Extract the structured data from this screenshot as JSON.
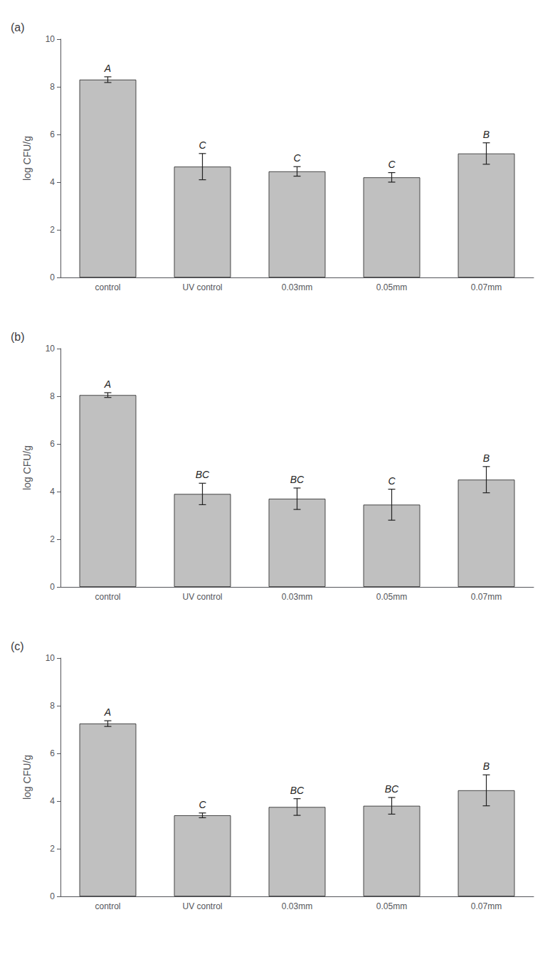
{
  "chart_data": [
    {
      "type": "bar",
      "title": "(a)",
      "categories": [
        "control",
        "UV control",
        "0.03mm",
        "0.05mm",
        "0.07mm"
      ],
      "values": [
        8.3,
        4.65,
        4.45,
        4.2,
        5.2
      ],
      "errors": [
        0.12,
        0.55,
        0.2,
        0.2,
        0.45
      ],
      "annotations": [
        "A",
        "C",
        "C",
        "C",
        "B"
      ],
      "ylabel": "log CFU/g",
      "ylim": [
        0,
        10
      ],
      "yticks": [
        0,
        2,
        4,
        6,
        8,
        10
      ],
      "color": "#C0C0C0",
      "grid": false
    },
    {
      "type": "bar",
      "title": "(b)",
      "categories": [
        "control",
        "UV control",
        "0.03mm",
        "0.05mm",
        "0.07mm"
      ],
      "values": [
        8.05,
        3.9,
        3.7,
        3.45,
        4.5
      ],
      "errors": [
        0.1,
        0.45,
        0.45,
        0.65,
        0.55
      ],
      "annotations": [
        "A",
        "BC",
        "BC",
        "C",
        "B"
      ],
      "ylabel": "log CFU/g",
      "ylim": [
        0,
        10
      ],
      "yticks": [
        0,
        2,
        4,
        6,
        8,
        10
      ],
      "color": "#C0C0C0",
      "grid": false
    },
    {
      "type": "bar",
      "title": "(c)",
      "categories": [
        "control",
        "UV control",
        "0.03mm",
        "0.05mm",
        "0.07mm"
      ],
      "values": [
        7.25,
        3.4,
        3.75,
        3.8,
        4.45
      ],
      "errors": [
        0.12,
        0.1,
        0.35,
        0.35,
        0.65
      ],
      "annotations": [
        "A",
        "C",
        "BC",
        "BC",
        "B"
      ],
      "ylabel": "log CFU/g",
      "ylim": [
        0,
        10
      ],
      "yticks": [
        0,
        2,
        4,
        6,
        8,
        10
      ],
      "color": "#C0C0C0",
      "grid": false
    }
  ]
}
